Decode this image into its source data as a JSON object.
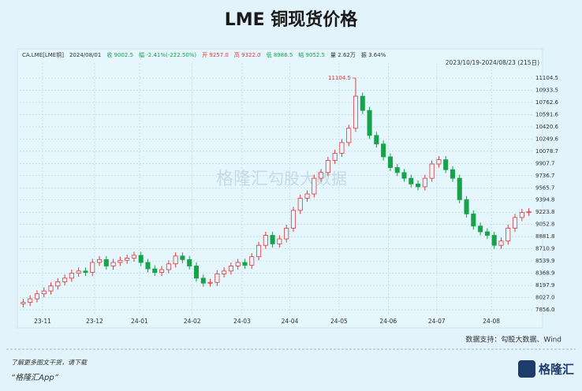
{
  "chart_data": {
    "type": "candlestick",
    "title": "LME 铜现货价格",
    "info": [
      "CA.LME[LME铜]",
      "2024/08/01",
      "收 9002.5",
      "幅 -2.41%(-222.50%)",
      "开 9257.0",
      "高 9322.0",
      "低 8986.5",
      "结 9052.5",
      "量 2.62万",
      "振 3.64%"
    ],
    "range_label": "2023/10/19-2024/08/23 (215日)",
    "open": [
      7940,
      7960,
      8010,
      8080,
      8120,
      8190,
      8250,
      8300,
      8370,
      8400,
      8380,
      8520,
      8560,
      8470,
      8520,
      8550,
      8580,
      8620,
      8520,
      8430,
      8380,
      8420,
      8500,
      8610,
      8560,
      8470,
      8300,
      8230,
      8240,
      8360,
      8400,
      8470,
      8520,
      8480,
      8600,
      8760,
      8900,
      8780,
      8850,
      9000,
      9250,
      9420,
      9480,
      9700,
      9780,
      9950,
      10050,
      10200,
      10400,
      10850,
      10650,
      10300,
      10180,
      10000,
      9850,
      9780,
      9700,
      9620,
      9580,
      9700,
      9900,
      9960,
      9820,
      9700,
      9400,
      9200,
      9030,
      8950,
      8900,
      8760,
      8820,
      9000,
      9150,
      9220
    ],
    "high": [
      8010,
      8060,
      8130,
      8170,
      8240,
      8300,
      8350,
      8420,
      8450,
      8450,
      8570,
      8610,
      8610,
      8570,
      8600,
      8630,
      8670,
      8670,
      8570,
      8480,
      8470,
      8550,
      8660,
      8660,
      8610,
      8520,
      8350,
      8290,
      8410,
      8450,
      8520,
      8570,
      8570,
      8650,
      8810,
      8950,
      8950,
      8900,
      9050,
      9300,
      9470,
      9530,
      9750,
      9830,
      10000,
      10100,
      10250,
      10450,
      11104.5,
      10900,
      10700,
      10350,
      10230,
      10050,
      9900,
      9830,
      9750,
      9670,
      9750,
      9950,
      10010,
      10010,
      9870,
      9750,
      9450,
      9250,
      9080,
      9000,
      8950,
      8870,
      9050,
      9200,
      9270,
      9280
    ],
    "low": [
      7890,
      7910,
      7960,
      8030,
      8070,
      8140,
      8200,
      8250,
      8320,
      8330,
      8330,
      8470,
      8420,
      8420,
      8470,
      8500,
      8530,
      8470,
      8380,
      8330,
      8330,
      8370,
      8450,
      8510,
      8420,
      8250,
      8180,
      8180,
      8190,
      8310,
      8350,
      8420,
      8430,
      8430,
      8550,
      8710,
      8730,
      8730,
      8800,
      8950,
      9200,
      9370,
      9430,
      9650,
      9730,
      9900,
      10000,
      10150,
      10350,
      10600,
      10250,
      10130,
      9950,
      9800,
      9730,
      9650,
      9570,
      9530,
      9530,
      9650,
      9850,
      9770,
      9650,
      9350,
      9150,
      8980,
      8900,
      8850,
      8710,
      8710,
      8770,
      8950,
      9100,
      9170
    ],
    "close": [
      7960,
      8010,
      8080,
      8120,
      8190,
      8250,
      8300,
      8370,
      8400,
      8380,
      8520,
      8560,
      8470,
      8520,
      8550,
      8580,
      8620,
      8520,
      8430,
      8380,
      8420,
      8500,
      8610,
      8560,
      8470,
      8300,
      8230,
      8240,
      8360,
      8400,
      8470,
      8520,
      8480,
      8600,
      8760,
      8900,
      8780,
      8850,
      9000,
      9250,
      9420,
      9480,
      9700,
      9780,
      9950,
      10050,
      10200,
      10400,
      10850,
      10650,
      10300,
      10180,
      10000,
      9850,
      9780,
      9700,
      9620,
      9580,
      9700,
      9900,
      9960,
      9820,
      9700,
      9400,
      9200,
      9030,
      8950,
      8900,
      8760,
      8820,
      9000,
      9150,
      9220,
      9230
    ],
    "up_color": "#e0393b",
    "down_color": "#16a34a",
    "xlim": [
      -0.5,
      73.5
    ],
    "xticks": [
      {
        "value": 2.8,
        "label": "23-11"
      },
      {
        "value": 10.3,
        "label": "23-12"
      },
      {
        "value": 16.8,
        "label": "24-01"
      },
      {
        "value": 24.4,
        "label": "24-02"
      },
      {
        "value": 31.6,
        "label": "24-03"
      },
      {
        "value": 38.5,
        "label": "24-04"
      },
      {
        "value": 45.6,
        "label": "24-05"
      },
      {
        "value": 52.7,
        "label": "24-06"
      },
      {
        "value": 59.7,
        "label": "24-07"
      },
      {
        "value": 67.6,
        "label": "24-08"
      }
    ],
    "ylim": [
      7779,
      11259
    ],
    "yticks": [
      11104.5,
      10933.5,
      10762.6,
      10591.6,
      10420.6,
      10249.6,
      10078.7,
      9907.7,
      9736.7,
      9565.7,
      9394.8,
      9223.8,
      9052.8,
      8881.8,
      8710.9,
      8539.9,
      8368.9,
      8197.9,
      {
        "value": 8027,
        "label": "8027.0"
      },
      {
        "value": 7856,
        "label": "7856.0"
      }
    ],
    "grid": true,
    "peak_index": 48,
    "watermarks": [
      "格隆汇",
      "勾股大数据"
    ],
    "source": "数据支持：勾股大数据、Wind"
  },
  "footer": {
    "line1": "了解更多图文干货，请下载",
    "line2": "“格隆汇App”",
    "logo": "格隆汇"
  }
}
